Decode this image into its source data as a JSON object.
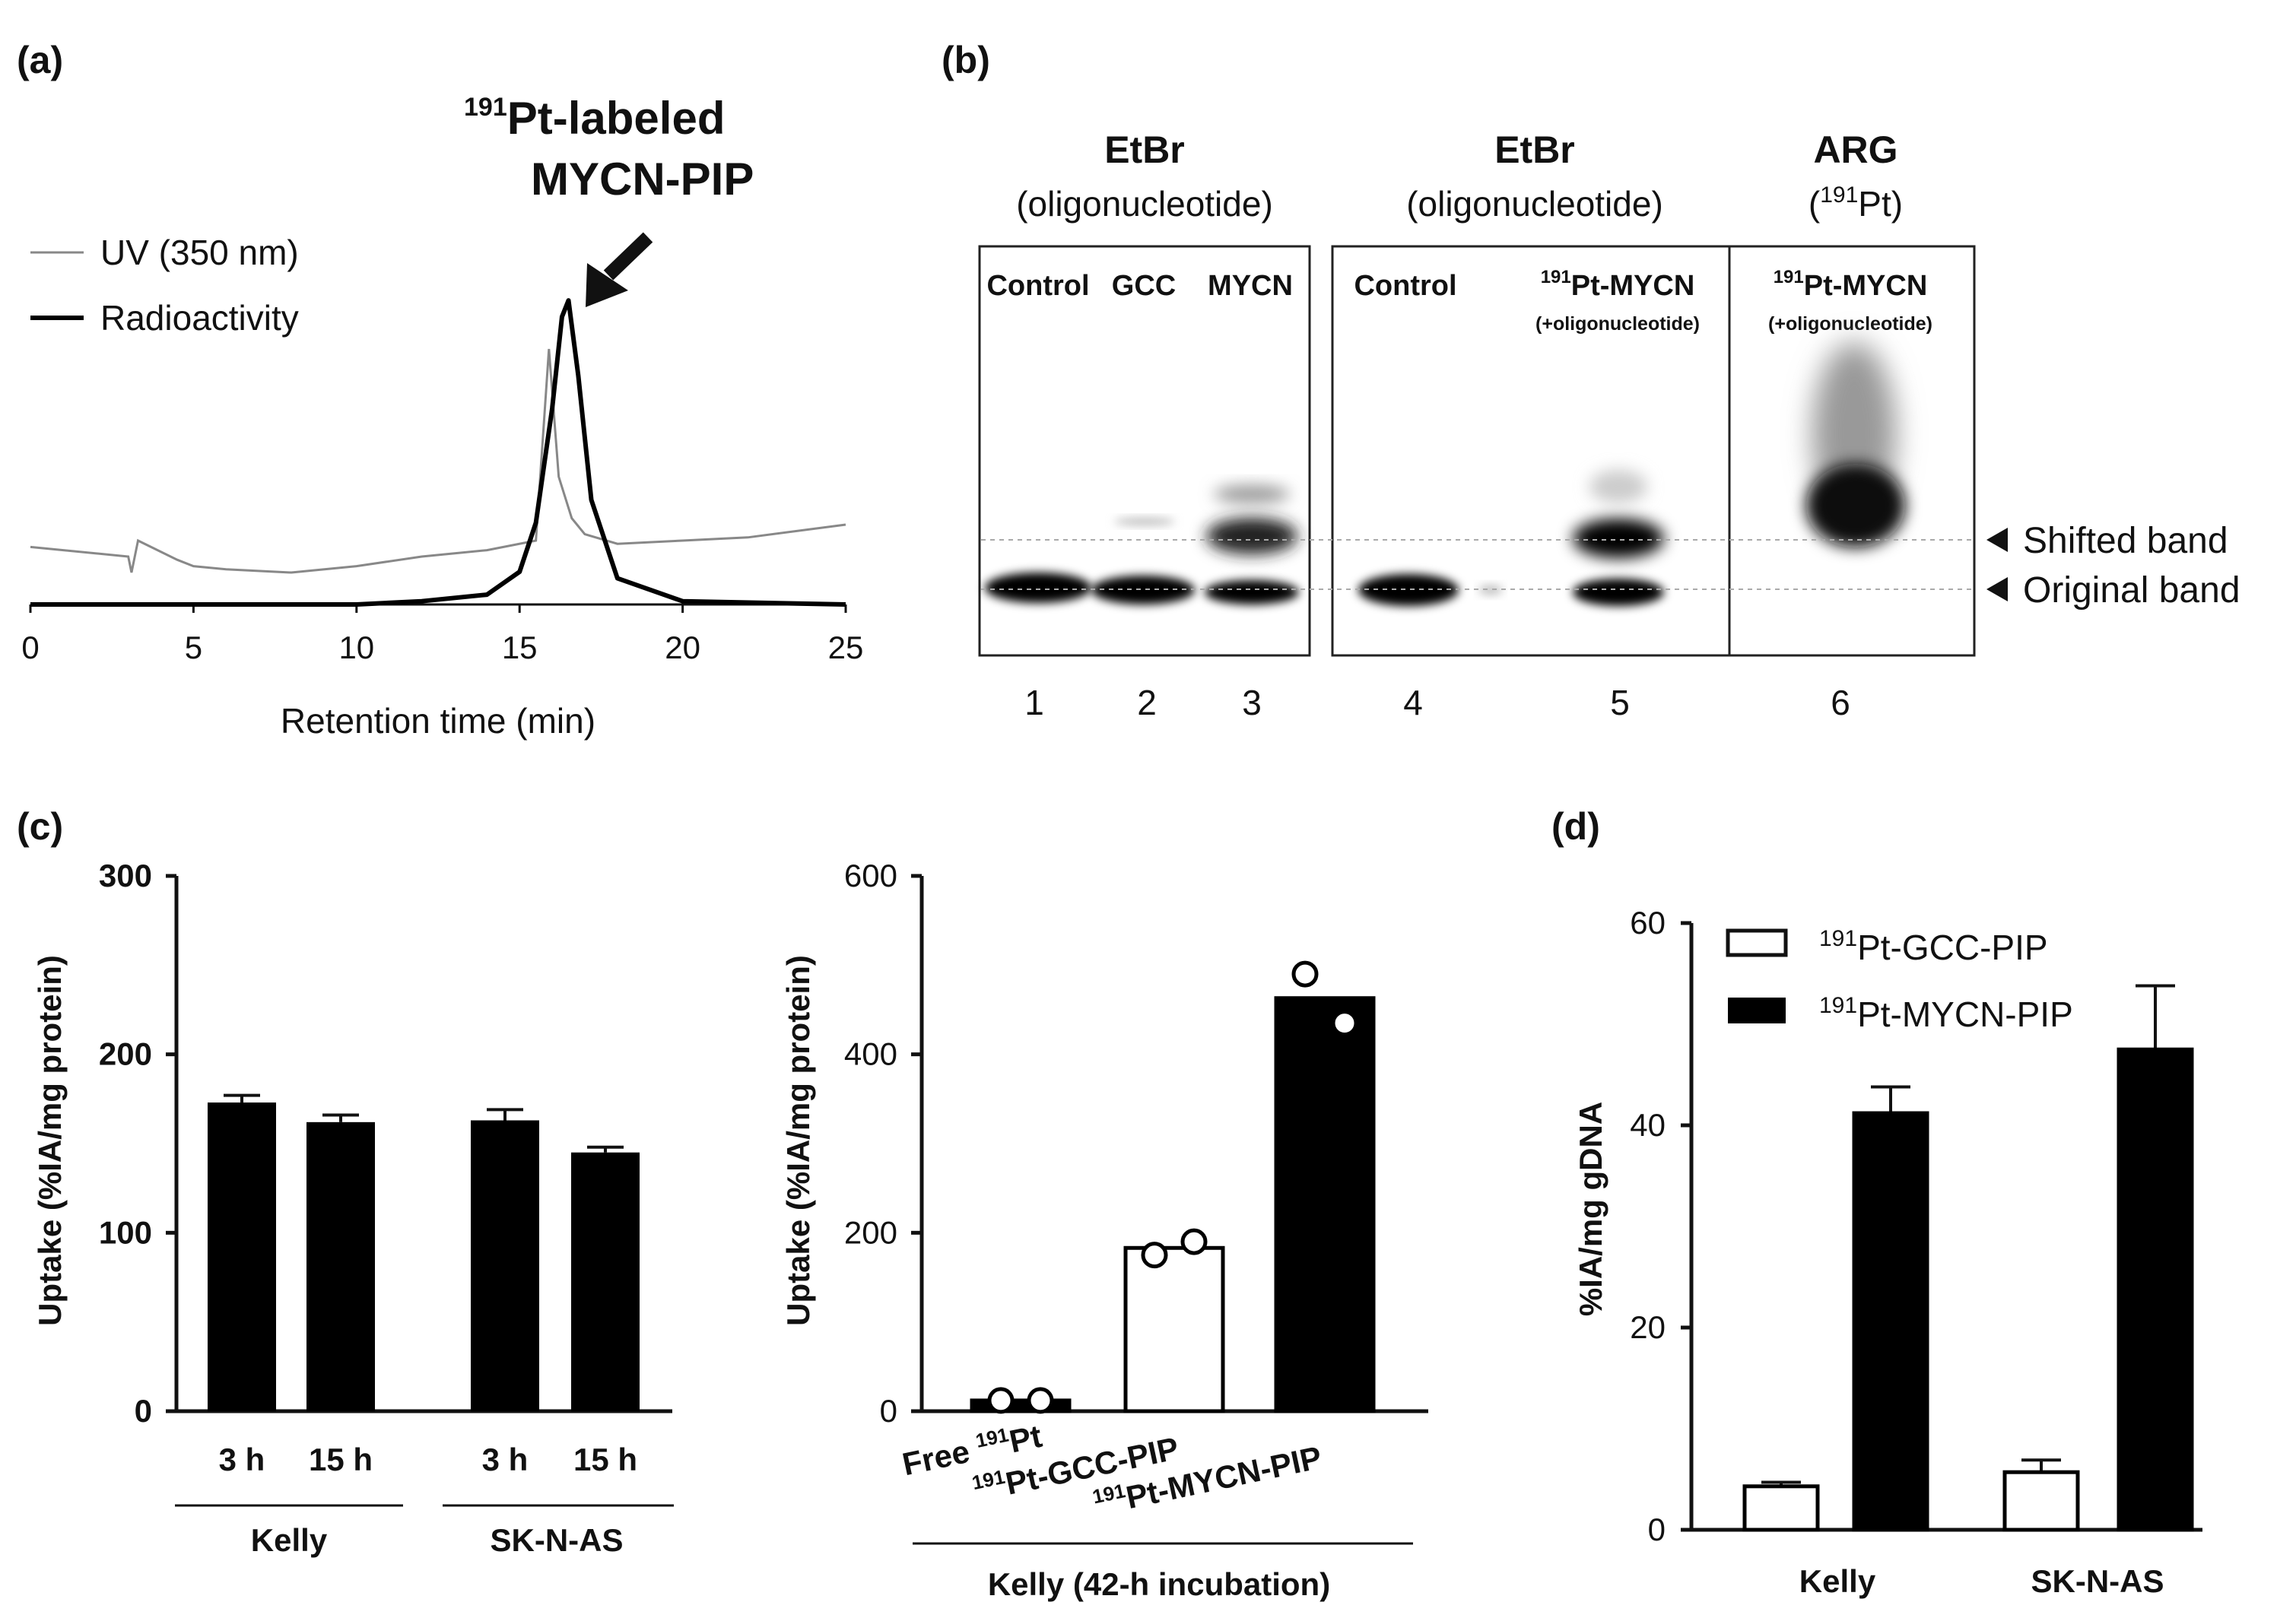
{
  "panels": {
    "a": {
      "label": "(a)",
      "peak_label_line1_sup": "191",
      "peak_label_line1": "Pt-labeled",
      "peak_label_line2": "MYCN-PIP",
      "legend": [
        "UV (350 nm)",
        "Radioactivity"
      ],
      "xlabel": "Retention time (min)",
      "xticks": [
        "0",
        "5",
        "10",
        "15",
        "20",
        "25"
      ]
    },
    "b": {
      "label": "(b)",
      "groups": [
        {
          "title": "EtBr",
          "subtitle": "(oligonucleotide)"
        },
        {
          "title": "EtBr",
          "subtitle": "(oligonucleotide)"
        },
        {
          "title": "ARG",
          "subtitle_pre": "(",
          "subtitle_sup": "191",
          "subtitle_post": "Pt)"
        }
      ],
      "lanes": [
        "Control",
        "GCC",
        "MYCN",
        "Control"
      ],
      "lane5": {
        "sup": "191",
        "main": "Pt-MYCN",
        "sub": "(+oligonucleotide)"
      },
      "lane6": {
        "sup": "191",
        "main": "Pt-MYCN",
        "sub": "(+oligonucleotide)"
      },
      "lane_numbers": [
        "1",
        "2",
        "3",
        "4",
        "5",
        "6"
      ],
      "band_labels": [
        "Shifted band",
        "Original band"
      ]
    },
    "c": {
      "label": "(c)",
      "left_ylabel": "Uptake (%IA/mg protein)",
      "left_yticks": [
        "0",
        "100",
        "200",
        "300"
      ],
      "left_xticks": [
        "3 h",
        "15 h",
        "3 h",
        "15 h"
      ],
      "left_groups": [
        "Kelly",
        "SK-N-AS"
      ],
      "right_ylabel": "Uptake (%IA/mg protein)",
      "right_yticks": [
        "0",
        "200",
        "400",
        "600"
      ],
      "right_cat1": {
        "pre": "Free ",
        "sup": "191",
        "post": "Pt"
      },
      "right_cat2": {
        "sup": "191",
        "post": "Pt-GCC-PIP"
      },
      "right_cat3": {
        "sup": "191",
        "post": "Pt-MYCN-PIP"
      },
      "right_group": "Kelly (42-h incubation)"
    },
    "d": {
      "label": "(d)",
      "ylabel": "%IA/mg gDNA",
      "yticks": [
        "0",
        "20",
        "40",
        "60"
      ],
      "legend1": {
        "sup": "191",
        "post": "Pt-GCC-PIP"
      },
      "legend2": {
        "sup": "191",
        "post": "Pt-MYCN-PIP"
      },
      "xticks": [
        "Kelly",
        "SK-N-AS"
      ]
    }
  },
  "chart_data": [
    {
      "panel": "a",
      "type": "line",
      "xlabel": "Retention time (min)",
      "xlim": [
        0,
        25
      ],
      "series": [
        {
          "name": "UV (350 nm)",
          "color": "#888888",
          "x": [
            0,
            3,
            3.1,
            3.3,
            4.5,
            5,
            6,
            8,
            10,
            12,
            14,
            15.5,
            15.9,
            16.2,
            16.6,
            17,
            18,
            20,
            22,
            25
          ],
          "y": [
            0.18,
            0.15,
            0.1,
            0.2,
            0.14,
            0.12,
            0.11,
            0.1,
            0.12,
            0.15,
            0.17,
            0.2,
            0.8,
            0.4,
            0.27,
            0.22,
            0.19,
            0.2,
            0.21,
            0.25
          ]
        },
        {
          "name": "Radioactivity",
          "color": "#000000",
          "x": [
            0,
            5,
            10,
            12,
            14,
            15,
            15.5,
            16,
            16.3,
            16.5,
            16.8,
            17.2,
            18,
            20,
            25
          ],
          "y": [
            0.0,
            0.0,
            0.0,
            0.01,
            0.03,
            0.1,
            0.25,
            0.6,
            0.88,
            0.93,
            0.7,
            0.32,
            0.08,
            0.01,
            0.0
          ]
        }
      ]
    },
    {
      "panel": "c-left",
      "type": "bar",
      "categories": [
        "3 h",
        "15 h",
        "3 h",
        "15 h"
      ],
      "groups": [
        "Kelly",
        "Kelly",
        "SK-N-AS",
        "SK-N-AS"
      ],
      "values": [
        173,
        162,
        163,
        145
      ],
      "errors": [
        4,
        4,
        6,
        3
      ],
      "ylabel": "Uptake (%IA/mg protein)",
      "ylim": [
        0,
        300
      ]
    },
    {
      "panel": "c-right",
      "type": "bar",
      "categories": [
        "Free 191Pt",
        "191Pt-GCC-PIP",
        "191Pt-MYCN-PIP"
      ],
      "values": [
        12,
        183,
        463
      ],
      "fills": [
        "black",
        "white",
        "black"
      ],
      "points": [
        [
          12,
          12
        ],
        [
          175,
          190
        ],
        [
          490,
          435
        ]
      ],
      "ylabel": "Uptake (%IA/mg protein)",
      "ylim": [
        0,
        600
      ]
    },
    {
      "panel": "d",
      "type": "bar",
      "categories": [
        "Kelly",
        "SK-N-AS"
      ],
      "series": [
        {
          "name": "191Pt-GCC-PIP",
          "fill": "white",
          "values": [
            4.3,
            5.7
          ],
          "errors": [
            0.4,
            1.2
          ]
        },
        {
          "name": "191Pt-MYCN-PIP",
          "fill": "black",
          "values": [
            41.2,
            47.5
          ],
          "errors": [
            2.6,
            6.3
          ]
        }
      ],
      "ylabel": "%IA/mg gDNA",
      "ylim": [
        0,
        60
      ]
    }
  ]
}
